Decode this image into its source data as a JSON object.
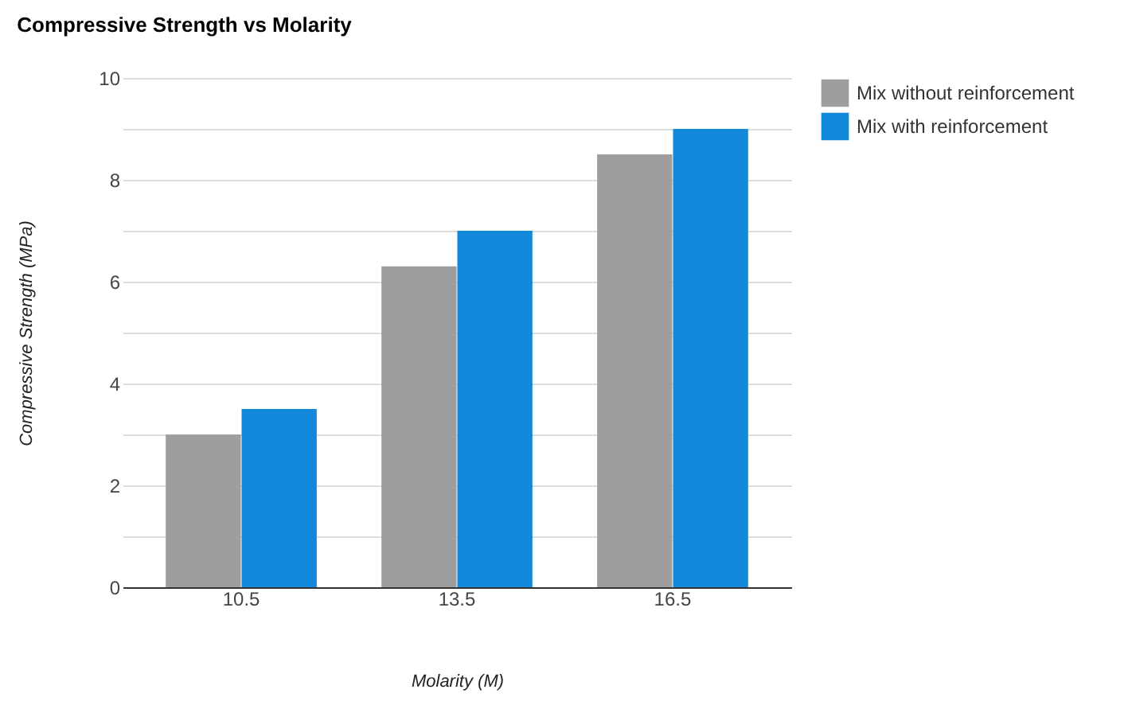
{
  "chart_data": {
    "type": "bar",
    "title": "Compressive Strength vs Molarity",
    "xlabel": "Molarity (M)",
    "ylabel": "Compressive Strength (MPa)",
    "categories": [
      "10.5",
      "13.5",
      "16.5"
    ],
    "series": [
      {
        "name": "Mix without reinforcement",
        "color": "#9e9e9e",
        "values": [
          3.0,
          6.3,
          8.5
        ]
      },
      {
        "name": "Mix with reinforcement",
        "color": "#1289db",
        "values": [
          3.5,
          7.0,
          9.0
        ]
      }
    ],
    "ylim": [
      0,
      10
    ],
    "yticks": [
      0,
      {
        "value": 1,
        "label": null
      },
      2,
      {
        "value": 3,
        "label": null
      },
      4,
      {
        "value": 5,
        "label": null
      },
      6,
      {
        "value": 7,
        "label": null
      },
      8,
      {
        "value": 9,
        "label": null
      },
      10
    ],
    "grid": true,
    "legend": "top right"
  }
}
